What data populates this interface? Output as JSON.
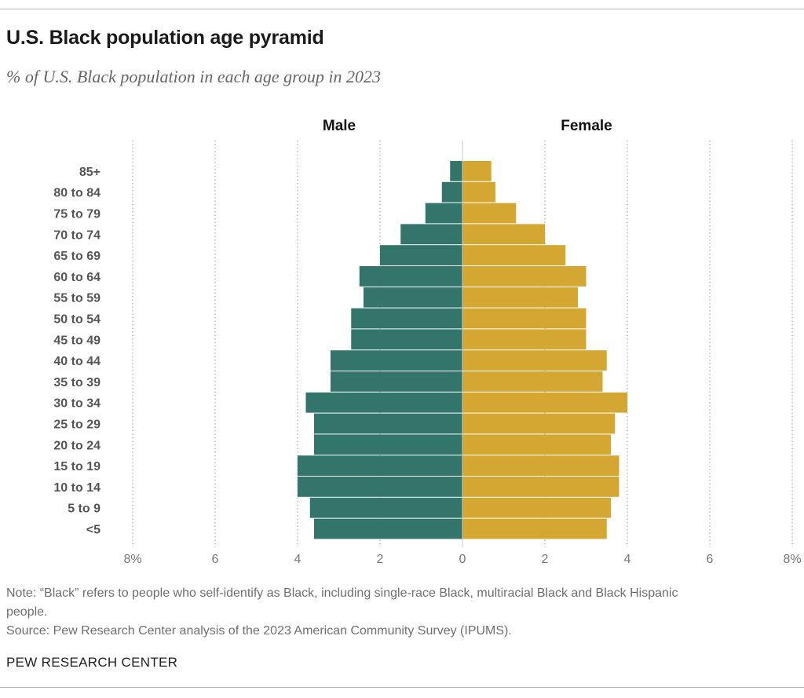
{
  "header": {
    "title": "U.S. Black population age pyramid",
    "subtitle": "% of U.S. Black population in each age group in 2023"
  },
  "footer": {
    "note": "Note: “Black” refers to people who self-identify as Black, including single-race Black, multiracial Black and Black Hispanic people.",
    "source": "Source: Pew Research Center analysis of the 2023 American Community Survey (IPUMS).",
    "brand": "PEW RESEARCH CENTER"
  },
  "colors": {
    "male": "#33756a",
    "female": "#d3a732",
    "grid": "#9a9a9a"
  },
  "chart_data": {
    "type": "bar",
    "orientation": "horizontal-pyramid",
    "title": "U.S. Black population age pyramid",
    "subtitle": "% of U.S. Black population in each age group in 2023",
    "categories": [
      "85+",
      "80 to 84",
      "75 to 79",
      "70 to 74",
      "65 to 69",
      "60 to 64",
      "55 to 59",
      "50 to 54",
      "45 to 49",
      "40 to 44",
      "35 to 39",
      "30 to 34",
      "25 to 29",
      "20 to 24",
      "15 to 19",
      "10 to 14",
      "5 to 9",
      "<5"
    ],
    "series": [
      {
        "name": "Male",
        "values": [
          0.3,
          0.5,
          0.9,
          1.5,
          2.0,
          2.5,
          2.4,
          2.7,
          2.7,
          3.2,
          3.2,
          3.8,
          3.6,
          3.6,
          4.0,
          4.0,
          3.7,
          3.6
        ]
      },
      {
        "name": "Female",
        "values": [
          0.7,
          0.8,
          1.3,
          2.0,
          2.5,
          3.0,
          2.8,
          3.0,
          3.0,
          3.5,
          3.4,
          4.0,
          3.7,
          3.6,
          3.8,
          3.8,
          3.6,
          3.5
        ]
      }
    ],
    "xlim": [
      -8,
      8
    ],
    "ticks": [
      {
        "value": -8,
        "label": "8%"
      },
      {
        "value": -6,
        "label": "6"
      },
      {
        "value": -4,
        "label": "4"
      },
      {
        "value": -2,
        "label": "2"
      },
      {
        "value": 0,
        "label": "0"
      },
      {
        "value": 2,
        "label": "2"
      },
      {
        "value": 4,
        "label": "4"
      },
      {
        "value": 6,
        "label": "6"
      },
      {
        "value": 8,
        "label": "8%"
      }
    ],
    "xlabel": "",
    "ylabel": "",
    "grid": true
  }
}
